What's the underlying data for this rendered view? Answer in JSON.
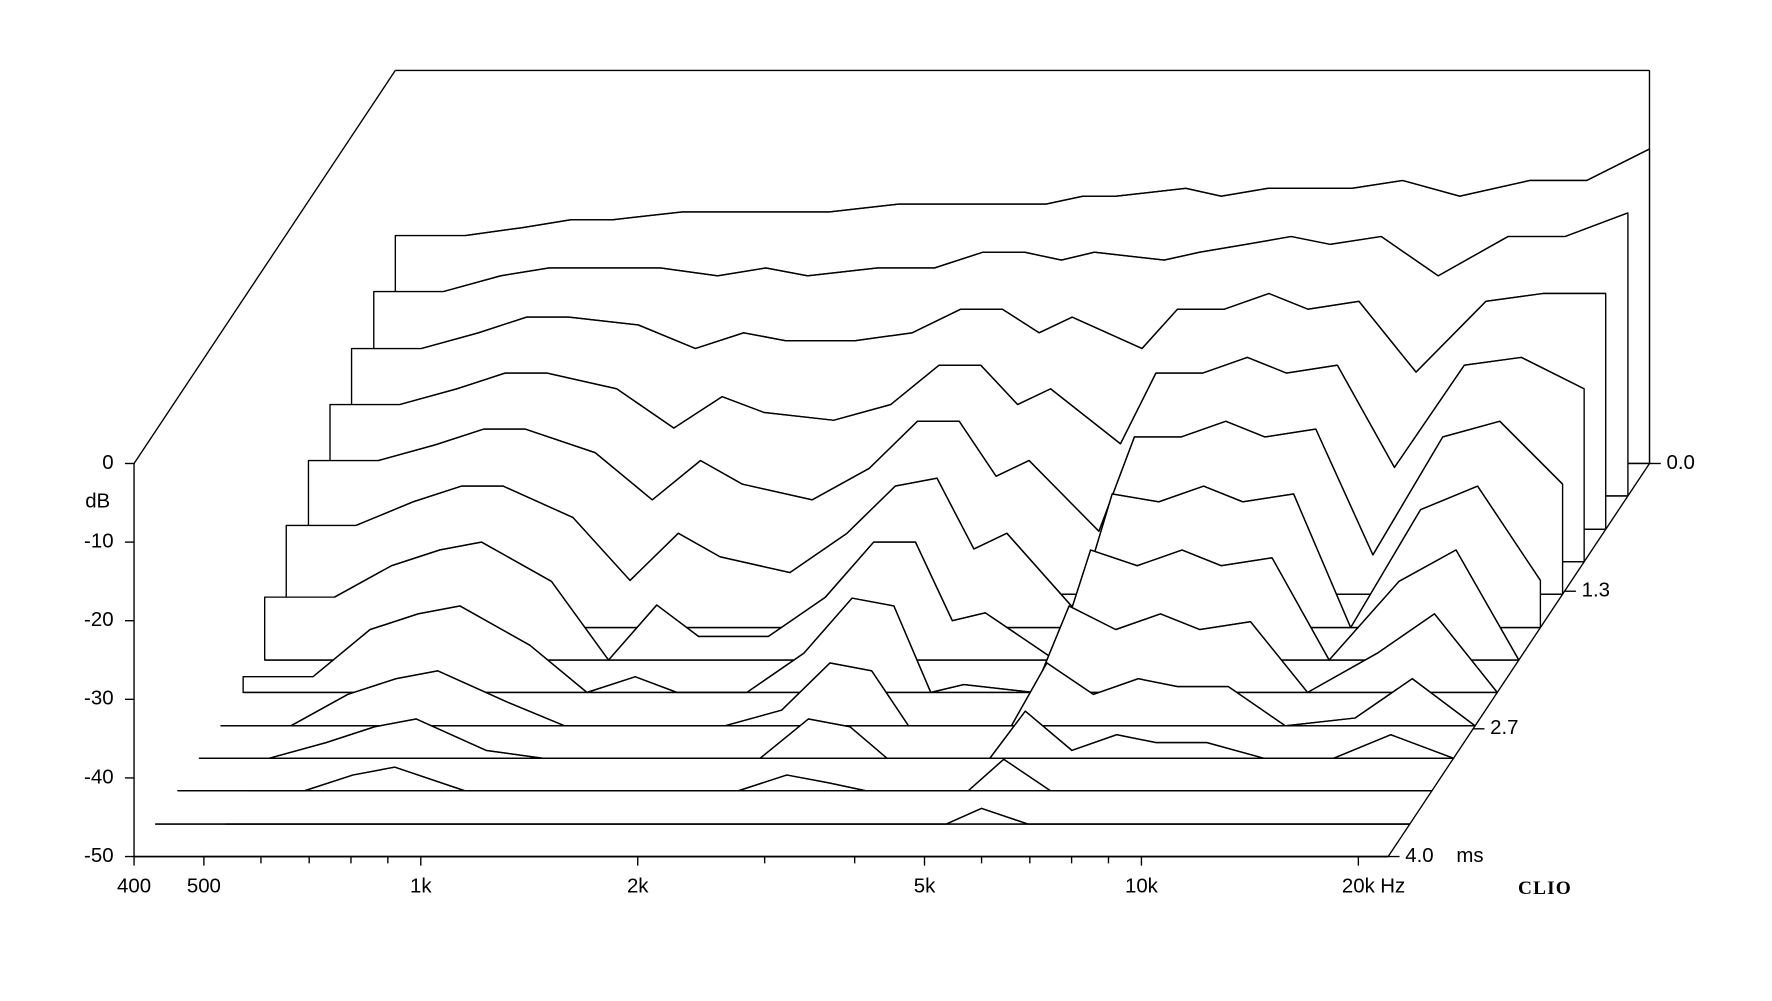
{
  "chart_data": {
    "type": "waterfall",
    "brand": "CLIO",
    "xlabel": "Hz",
    "ylabel": "dB",
    "zlabel": "ms",
    "xscale": "log",
    "xlim": [
      400,
      22000
    ],
    "xticks": [
      400,
      500,
      {
        "value": 1000,
        "label": "1k"
      },
      {
        "value": 2000,
        "label": "2k"
      },
      {
        "value": 5000,
        "label": "5k"
      },
      {
        "value": 10000,
        "label": "10k"
      },
      {
        "value": 20000,
        "label": "20k"
      }
    ],
    "xminorticks": [
      600,
      700,
      800,
      900,
      3000,
      4000,
      6000,
      7000,
      8000,
      9000
    ],
    "ylim": [
      -50,
      0
    ],
    "yticks": [
      0,
      -10,
      -20,
      -30,
      -40,
      -50
    ],
    "zlim": [
      0,
      4
    ],
    "zticks": [
      {
        "value": 0,
        "label": "0.0"
      },
      1.3,
      2.7,
      {
        "value": 4,
        "label": "4.0"
      }
    ],
    "color": "#000000",
    "x": [
      500,
      600,
      700,
      800,
      1000,
      1200,
      1400,
      1600,
      2000,
      2400,
      2800,
      3200,
      3600,
      4000,
      5000,
      5600,
      6500,
      7500,
      8500,
      10000,
      12000,
      15000,
      18000,
      22000
    ],
    "z": [
      0,
      0.33,
      0.67,
      1,
      1.33,
      1.67,
      2,
      2.33,
      2.67,
      3,
      3.33,
      3.67,
      4
    ],
    "values": [
      [
        -21,
        -20,
        -19,
        -19,
        -18,
        -18,
        -18,
        -18,
        -17,
        -17,
        -17,
        -17,
        -16,
        -16,
        -15,
        -16,
        -15,
        -15,
        -15,
        -14,
        -16,
        -14,
        -14,
        -10
      ],
      [
        -24,
        -22,
        -21,
        -21,
        -21,
        -22,
        -21,
        -22,
        -21,
        -21,
        -19,
        -19,
        -20,
        -19,
        -20,
        -19,
        -18,
        -17,
        -18,
        -17,
        -22,
        -17,
        -17,
        -14
      ],
      [
        -27,
        -25,
        -23,
        -23,
        -24,
        -27,
        -25,
        -26,
        -26,
        -25,
        -22,
        -22,
        -25,
        -23,
        -27,
        -22,
        -22,
        -20,
        -22,
        -21,
        -30,
        -21,
        -20,
        -20
      ],
      [
        -30,
        -28,
        -26,
        -26,
        -28,
        -33,
        -29,
        -31,
        -32,
        -30,
        -25,
        -25,
        -30,
        -28,
        -35,
        -26,
        -26,
        -24,
        -26,
        -25,
        -38,
        -25,
        -24,
        -28
      ],
      [
        -33,
        -31,
        -29,
        -29,
        -32,
        -38,
        -33,
        -36,
        -38,
        -34,
        -28,
        -28,
        -35,
        -33,
        -42,
        -30,
        -30,
        -28,
        -30,
        -29,
        -45,
        -30,
        -28,
        -36
      ],
      [
        -37,
        -34,
        -32,
        -32,
        -36,
        -44,
        -38,
        -41,
        -43,
        -38,
        -32,
        -31,
        -40,
        -38,
        -48,
        -33,
        -34,
        -32,
        -34,
        -33,
        -50,
        -35,
        -32,
        -44
      ],
      [
        -42,
        -38,
        -36,
        -35,
        -40,
        -50,
        -43,
        -47,
        -47,
        -42,
        -35,
        -35,
        -45,
        -44,
        -50,
        -36,
        -38,
        -36,
        -38,
        -37,
        -50,
        -40,
        -36,
        -50
      ],
      [
        -48,
        -42,
        -40,
        -39,
        -44,
        -50,
        -48,
        -50,
        -50,
        -45,
        -38,
        -39,
        -50,
        -49,
        -50,
        -39,
        -42,
        -40,
        -42,
        -41,
        -50,
        -45,
        -40,
        -50
      ],
      [
        -50,
        -46,
        -44,
        -43,
        -47,
        -50,
        -50,
        -50,
        -50,
        -48,
        -42,
        -43,
        -50,
        -50,
        -50,
        -42,
        -46,
        -44,
        -45,
        -45,
        -50,
        -49,
        -44,
        -50
      ],
      [
        -50,
        -48,
        -46,
        -45,
        -49,
        -50,
        -50,
        -50,
        -50,
        -50,
        -45,
        -46,
        -50,
        -50,
        -50,
        -44,
        -49,
        -47,
        -48,
        -48,
        -50,
        -50,
        -47,
        -50
      ],
      [
        -50,
        -50,
        -48,
        -47,
        -50,
        -50,
        -50,
        -50,
        -50,
        -50,
        -48,
        -49,
        -50,
        -50,
        -50,
        -46,
        -50,
        -50,
        -50,
        -50,
        -50,
        -50,
        -50,
        -50
      ],
      [
        -50,
        -50,
        -50,
        -50,
        -50,
        -50,
        -50,
        -50,
        -50,
        -50,
        -50,
        -50,
        -50,
        -50,
        -50,
        -48,
        -50,
        -50,
        -50,
        -50,
        -50,
        -50,
        -50,
        -50
      ],
      [
        -50,
        -50,
        -50,
        -50,
        -50,
        -50,
        -50,
        -50,
        -50,
        -50,
        -50,
        -50,
        -50,
        -50,
        -50,
        -50,
        -50,
        -50,
        -50,
        -50,
        -50,
        -50,
        -50,
        -50
      ]
    ]
  }
}
